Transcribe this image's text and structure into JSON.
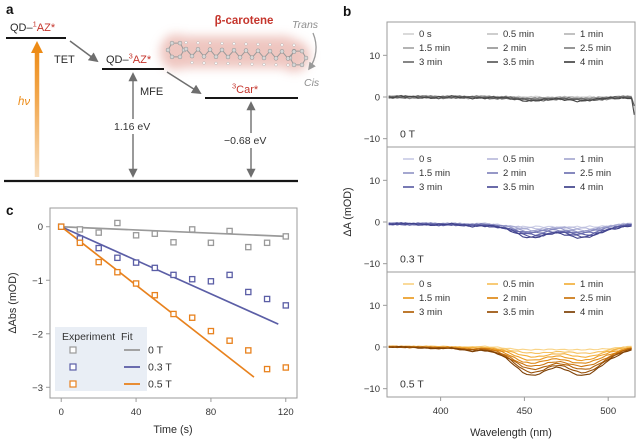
{
  "colors": {
    "accent_orange": "#ED8B16",
    "state_red": "#C5352C",
    "arrow_gray": "#6E6E6E",
    "axis_gray": "#9B9B9B",
    "text_dark": "#2B2B2B",
    "legend_bg": "#E9EEF5",
    "glow_pink": "#E9B3AB"
  },
  "panel_a": {
    "label": "a",
    "state_top": {
      "prefix": "QD–",
      "sup": "1",
      "name": "AZ*"
    },
    "state_mid": {
      "prefix": "QD–",
      "sup": "3",
      "name": "AZ*"
    },
    "state_car": {
      "sup": "3",
      "name": "Car*"
    },
    "tet_label": "TET",
    "mfe_label": "MFE",
    "hv_label": "hν",
    "gap_tet": "1.16 eV",
    "gap_car": "−0.68 eV",
    "molecule_label": "β-carotene",
    "trans_label": "Trans",
    "cis_label": "Cis"
  },
  "chart_data": [
    {
      "id": "panel_b",
      "panel_label": "b",
      "type": "line",
      "xlabel": "Wavelength (nm)",
      "ylabel": "ΔA (mOD)",
      "xlim": [
        368,
        516
      ],
      "ylim": [
        -12,
        18
      ],
      "x_ticks": [
        400,
        450,
        500
      ],
      "y_ticks": [
        10,
        0,
        -10
      ],
      "legend_times": [
        "0 s",
        "0.5 min",
        "1 min",
        "1.5 min",
        "2 min",
        "2.5 min",
        "3 min",
        "3.5 min",
        "4 min"
      ],
      "bleach_minima_nm": [
        453,
        487
      ],
      "wavelengths": [
        370,
        375,
        380,
        385,
        390,
        395,
        400,
        405,
        410,
        415,
        420,
        425,
        430,
        435,
        440,
        445,
        450,
        455,
        460,
        465,
        470,
        475,
        480,
        485,
        490,
        495,
        500,
        505,
        510,
        515
      ],
      "bleach_profile": [
        0.02,
        0.03,
        0.03,
        0.04,
        0.05,
        0.06,
        0.07,
        0.06,
        0.1,
        0.14,
        0.16,
        0.12,
        0.18,
        0.28,
        0.45,
        0.7,
        0.92,
        1.0,
        0.92,
        0.78,
        0.72,
        0.8,
        0.94,
        1.0,
        0.92,
        0.72,
        0.5,
        0.33,
        0.18,
        0.08
      ],
      "subplots": [
        {
          "field_label": "0 T",
          "baseline": 0,
          "noise": 0.4,
          "edge_dip": -4.3,
          "depths": [
            0.15,
            0.2,
            0.3,
            0.35,
            0.45,
            0.55,
            0.6,
            0.7,
            0.8
          ],
          "colors": [
            "#d4d4d4",
            "#c6c6c6",
            "#b7b7b7",
            "#a7a7a7",
            "#969696",
            "#848484",
            "#707070",
            "#5b5b5b",
            "#464646"
          ]
        },
        {
          "field_label": "0.3 T",
          "baseline": -0.4,
          "noise": 0.35,
          "edge_dip": null,
          "depths": [
            0.9,
            1.2,
            1.5,
            1.8,
            2.1,
            2.4,
            2.7,
            3.0,
            3.3
          ],
          "colors": [
            "#cbcde6",
            "#b9bbdc",
            "#a7aad2",
            "#9598c8",
            "#8386bd",
            "#7174b2",
            "#6062a7",
            "#4f519a",
            "#3f418b"
          ]
        },
        {
          "field_label": "0.5 T",
          "baseline": 0.15,
          "noise": 0.2,
          "edge_dip": null,
          "depths": [
            0.9,
            1.7,
            2.5,
            3.3,
            4.1,
            4.9,
            5.6,
            6.3,
            7.0
          ],
          "colors": [
            "#f9d488",
            "#f6c260",
            "#f3b03d",
            "#eb9c24",
            "#de8916",
            "#cb7510",
            "#b2620b",
            "#985007",
            "#7d3f04"
          ]
        }
      ]
    },
    {
      "id": "panel_c",
      "panel_label": "c",
      "type": "scatter+fit",
      "xlabel": "Time (s)",
      "ylabel": "ΔAbs (mOD)",
      "xlim": [
        -6,
        126
      ],
      "ylim": [
        -3.2,
        0.35
      ],
      "x_ticks": [
        0,
        40,
        80,
        120
      ],
      "y_ticks": [
        0,
        -1,
        -2,
        -3
      ],
      "time_s": [
        0,
        10,
        20,
        30,
        40,
        50,
        60,
        70,
        80,
        90,
        100,
        110,
        120
      ],
      "legend": {
        "col_experiment": "Experiment",
        "col_fit": "Fit",
        "bg": "#E9EEF5"
      },
      "series": [
        {
          "label": "0 T",
          "color": "#9A9A9A",
          "abs_mod": [
            0,
            -0.05,
            -0.11,
            0.07,
            -0.16,
            -0.13,
            -0.29,
            -0.05,
            -0.3,
            -0.08,
            -0.38,
            -0.3,
            -0.18
          ],
          "fit": {
            "t": [
              0,
              120
            ],
            "y": [
              0,
              -0.18
            ]
          }
        },
        {
          "label": "0.3 T",
          "color": "#5B5EA6",
          "abs_mod": [
            0,
            -0.22,
            -0.4,
            -0.58,
            -0.67,
            -0.77,
            -0.9,
            -0.98,
            -1.02,
            -0.9,
            -1.22,
            -1.35,
            -1.47
          ],
          "fit": {
            "t": [
              0,
              116
            ],
            "y": [
              0,
              -1.82
            ]
          }
        },
        {
          "label": "0.5 T",
          "color": "#E8821E",
          "abs_mod": [
            0,
            -0.3,
            -0.66,
            -0.85,
            -1.06,
            -1.28,
            -1.63,
            -1.7,
            -1.95,
            -2.13,
            -2.31,
            -2.66,
            -2.63
          ],
          "fit": {
            "t": [
              0,
              103
            ],
            "y": [
              0,
              -2.81
            ]
          }
        }
      ]
    }
  ]
}
